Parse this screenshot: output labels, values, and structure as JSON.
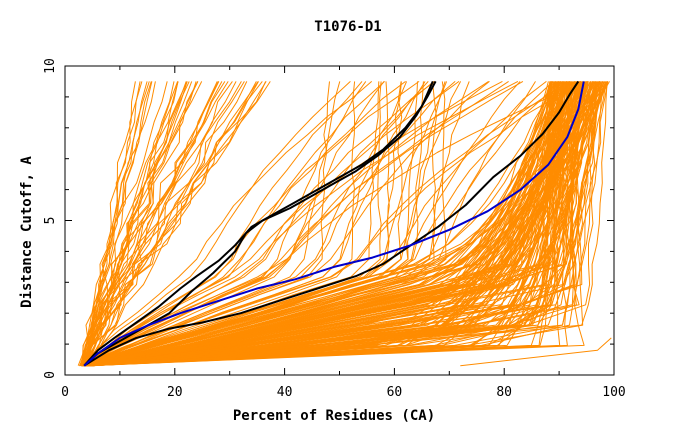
{
  "chart_data": {
    "type": "line",
    "title": "T1076-D1",
    "xlabel": "Percent of Residues (CA)",
    "ylabel": "Distance Cutoff, A",
    "xlim": [
      0,
      100
    ],
    "ylim": [
      0,
      10
    ],
    "x_ticks": [
      0,
      20,
      40,
      60,
      80,
      100
    ],
    "y_ticks": [
      0,
      5,
      10
    ],
    "y_tick_labels": [
      "0",
      "5",
      "10"
    ],
    "x_tick_labels": [
      "0",
      "20",
      "40",
      "60",
      "80",
      "100"
    ],
    "grid": false,
    "colors": {
      "orange": "#ff8c00",
      "black": "#000000",
      "blue": "#0000cc",
      "frame": "#000000"
    },
    "series": [
      {
        "name": "black-1",
        "color": "#000000",
        "points": [
          [
            3.5,
            0.3
          ],
          [
            6,
            0.8
          ],
          [
            9,
            1.2
          ],
          [
            13,
            1.7
          ],
          [
            17,
            2.2
          ],
          [
            21,
            2.8
          ],
          [
            24,
            3.2
          ],
          [
            28,
            3.7
          ],
          [
            31,
            4.2
          ],
          [
            34,
            4.8
          ],
          [
            38,
            5.2
          ],
          [
            42,
            5.6
          ],
          [
            46,
            6.0
          ],
          [
            50,
            6.4
          ],
          [
            54,
            6.8
          ],
          [
            58,
            7.3
          ],
          [
            62,
            8.0
          ],
          [
            65,
            8.7
          ],
          [
            67,
            9.5
          ]
        ]
      },
      {
        "name": "black-2",
        "color": "#000000",
        "points": [
          [
            3.5,
            0.3
          ],
          [
            6,
            0.7
          ],
          [
            10,
            1.1
          ],
          [
            14,
            1.5
          ],
          [
            19,
            2.0
          ],
          [
            23,
            2.7
          ],
          [
            27,
            3.3
          ],
          [
            31,
            4.0
          ],
          [
            33,
            4.6
          ],
          [
            36,
            5.0
          ],
          [
            41,
            5.4
          ],
          [
            45,
            5.8
          ],
          [
            49,
            6.2
          ],
          [
            53,
            6.6
          ],
          [
            57,
            7.1
          ],
          [
            61,
            7.7
          ],
          [
            64,
            8.4
          ],
          [
            66,
            9.0
          ],
          [
            67.5,
            9.5
          ]
        ]
      },
      {
        "name": "black-3",
        "color": "#000000",
        "points": [
          [
            3.5,
            0.3
          ],
          [
            8,
            0.8
          ],
          [
            13,
            1.2
          ],
          [
            19,
            1.5
          ],
          [
            25,
            1.7
          ],
          [
            32,
            2.0
          ],
          [
            39,
            2.4
          ],
          [
            46,
            2.8
          ],
          [
            53,
            3.2
          ],
          [
            58,
            3.6
          ],
          [
            63,
            4.2
          ],
          [
            68,
            4.8
          ],
          [
            73,
            5.5
          ],
          [
            78,
            6.4
          ],
          [
            83,
            7.1
          ],
          [
            87,
            7.8
          ],
          [
            90,
            8.5
          ],
          [
            92,
            9.1
          ],
          [
            93.5,
            9.5
          ]
        ]
      },
      {
        "name": "blue-1",
        "color": "#0000cc",
        "points": [
          [
            3.5,
            0.3
          ],
          [
            6,
            0.7
          ],
          [
            10,
            1.2
          ],
          [
            15,
            1.6
          ],
          [
            21,
            2.0
          ],
          [
            28,
            2.4
          ],
          [
            35,
            2.8
          ],
          [
            42,
            3.1
          ],
          [
            49,
            3.5
          ],
          [
            56,
            3.8
          ],
          [
            63,
            4.2
          ],
          [
            70,
            4.7
          ],
          [
            77,
            5.3
          ],
          [
            83,
            6.0
          ],
          [
            88,
            6.8
          ],
          [
            91.5,
            7.7
          ],
          [
            93.5,
            8.6
          ],
          [
            94.5,
            9.5
          ]
        ]
      }
    ]
  }
}
